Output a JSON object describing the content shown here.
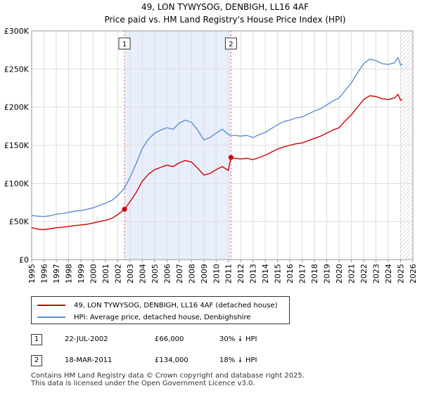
{
  "chart_data": {
    "type": "line",
    "title": "49, LON TYWYSOG, DENBIGH, LL16 4AF",
    "subtitle": "Price paid vs. HM Land Registry's House Price Index (HPI)",
    "xlabel": "",
    "ylabel": "",
    "xlim": [
      1995,
      2026
    ],
    "ylim": [
      0,
      300000
    ],
    "yticks": [
      0,
      50000,
      100000,
      150000,
      200000,
      250000,
      300000
    ],
    "ytick_labels": [
      "£0",
      "£50K",
      "£100K",
      "£150K",
      "£200K",
      "£250K",
      "£300K"
    ],
    "xticks": [
      "1995",
      "1996",
      "1997",
      "1998",
      "1999",
      "2000",
      "2001",
      "2002",
      "2003",
      "2004",
      "2005",
      "2006",
      "2007",
      "2008",
      "2009",
      "2010",
      "2011",
      "2012",
      "2013",
      "2014",
      "2015",
      "2016",
      "2017",
      "2018",
      "2019",
      "2020",
      "2021",
      "2022",
      "2023",
      "2024",
      "2025",
      "2026"
    ],
    "grid": true,
    "shaded_range": [
      2002.55,
      2011.21
    ],
    "hatched_from": 2025.0,
    "series": [
      {
        "name": "49, LON TYWYSOG, DENBIGH, LL16 4AF (detached house)",
        "color": "#cc0000",
        "points": [
          [
            1995.0,
            42000
          ],
          [
            1995.5,
            40000
          ],
          [
            1996.0,
            39500
          ],
          [
            1996.5,
            40500
          ],
          [
            1997.0,
            42000
          ],
          [
            1997.5,
            42500
          ],
          [
            1998.0,
            43500
          ],
          [
            1998.5,
            44500
          ],
          [
            1999.0,
            45500
          ],
          [
            1999.5,
            46500
          ],
          [
            2000.0,
            48000
          ],
          [
            2000.5,
            50000
          ],
          [
            2001.0,
            51500
          ],
          [
            2001.5,
            54000
          ],
          [
            2002.0,
            59000
          ],
          [
            2002.55,
            66000
          ],
          [
            2003.0,
            76000
          ],
          [
            2003.5,
            88000
          ],
          [
            2004.0,
            103000
          ],
          [
            2004.5,
            112000
          ],
          [
            2005.0,
            118000
          ],
          [
            2005.5,
            121000
          ],
          [
            2006.0,
            124000
          ],
          [
            2006.5,
            122000
          ],
          [
            2007.0,
            127000
          ],
          [
            2007.5,
            130000
          ],
          [
            2008.0,
            128000
          ],
          [
            2008.5,
            120000
          ],
          [
            2009.0,
            111000
          ],
          [
            2009.5,
            113000
          ],
          [
            2010.0,
            118000
          ],
          [
            2010.5,
            122000
          ],
          [
            2011.0,
            117000
          ],
          [
            2011.21,
            134000
          ],
          [
            2011.5,
            133000
          ],
          [
            2012.0,
            132000
          ],
          [
            2012.5,
            133000
          ],
          [
            2013.0,
            131000
          ],
          [
            2013.5,
            134000
          ],
          [
            2014.0,
            137000
          ],
          [
            2014.5,
            141000
          ],
          [
            2015.0,
            145000
          ],
          [
            2015.5,
            148000
          ],
          [
            2016.0,
            150000
          ],
          [
            2016.5,
            152000
          ],
          [
            2017.0,
            153000
          ],
          [
            2017.5,
            156000
          ],
          [
            2018.0,
            159000
          ],
          [
            2018.5,
            162000
          ],
          [
            2019.0,
            166000
          ],
          [
            2019.5,
            170000
          ],
          [
            2020.0,
            173000
          ],
          [
            2020.5,
            182000
          ],
          [
            2021.0,
            190000
          ],
          [
            2021.5,
            200000
          ],
          [
            2022.0,
            210000
          ],
          [
            2022.5,
            215000
          ],
          [
            2023.0,
            214000
          ],
          [
            2023.5,
            211000
          ],
          [
            2024.0,
            210000
          ],
          [
            2024.5,
            212000
          ],
          [
            2024.8,
            217000
          ],
          [
            2025.0,
            209000
          ],
          [
            2025.15,
            210000
          ]
        ]
      },
      {
        "name": "HPI: Average price, detached house, Denbighshire",
        "color": "#5b8fd0",
        "points": [
          [
            1995.0,
            58000
          ],
          [
            1995.5,
            57000
          ],
          [
            1996.0,
            56500
          ],
          [
            1996.5,
            57500
          ],
          [
            1997.0,
            59500
          ],
          [
            1997.5,
            60500
          ],
          [
            1998.0,
            62000
          ],
          [
            1998.5,
            63500
          ],
          [
            1999.0,
            64500
          ],
          [
            1999.5,
            66000
          ],
          [
            2000.0,
            68000
          ],
          [
            2000.5,
            71000
          ],
          [
            2001.0,
            74000
          ],
          [
            2001.5,
            77500
          ],
          [
            2002.0,
            84000
          ],
          [
            2002.55,
            94000
          ],
          [
            2003.0,
            108000
          ],
          [
            2003.5,
            126000
          ],
          [
            2004.0,
            146000
          ],
          [
            2004.5,
            158000
          ],
          [
            2005.0,
            166000
          ],
          [
            2005.5,
            170000
          ],
          [
            2006.0,
            173000
          ],
          [
            2006.5,
            171000
          ],
          [
            2007.0,
            179000
          ],
          [
            2007.5,
            183000
          ],
          [
            2008.0,
            180000
          ],
          [
            2008.5,
            170000
          ],
          [
            2009.0,
            157000
          ],
          [
            2009.5,
            160000
          ],
          [
            2010.0,
            166000
          ],
          [
            2010.5,
            171000
          ],
          [
            2011.0,
            164000
          ],
          [
            2011.21,
            163000
          ],
          [
            2011.5,
            163000
          ],
          [
            2012.0,
            162000
          ],
          [
            2012.5,
            163000
          ],
          [
            2013.0,
            160000
          ],
          [
            2013.5,
            164000
          ],
          [
            2014.0,
            167000
          ],
          [
            2014.5,
            172000
          ],
          [
            2015.0,
            177000
          ],
          [
            2015.5,
            181000
          ],
          [
            2016.0,
            183000
          ],
          [
            2016.5,
            186000
          ],
          [
            2017.0,
            187000
          ],
          [
            2017.5,
            191000
          ],
          [
            2018.0,
            195000
          ],
          [
            2018.5,
            198000
          ],
          [
            2019.0,
            203000
          ],
          [
            2019.5,
            208000
          ],
          [
            2020.0,
            212000
          ],
          [
            2020.5,
            222000
          ],
          [
            2021.0,
            232000
          ],
          [
            2021.5,
            245000
          ],
          [
            2022.0,
            257000
          ],
          [
            2022.5,
            263000
          ],
          [
            2023.0,
            261000
          ],
          [
            2023.5,
            257000
          ],
          [
            2024.0,
            256000
          ],
          [
            2024.5,
            258000
          ],
          [
            2024.8,
            265000
          ],
          [
            2025.0,
            255000
          ],
          [
            2025.15,
            256000
          ]
        ]
      }
    ],
    "annotations": [
      {
        "label": "1",
        "x": 2002.55,
        "y": 66000
      },
      {
        "label": "2",
        "x": 2011.21,
        "y": 134000
      }
    ]
  },
  "legend": {
    "property_label": "49, LON TYWYSOG, DENBIGH, LL16 4AF (detached house)",
    "hpi_label": "HPI: Average price, detached house, Denbighshire"
  },
  "sales": [
    {
      "num": "1",
      "date": "22-JUL-2002",
      "price": "£66,000",
      "hpi": "30% ↓ HPI"
    },
    {
      "num": "2",
      "date": "18-MAR-2011",
      "price": "£134,000",
      "hpi": "18% ↓ HPI"
    }
  ],
  "footer": {
    "line1": "Contains HM Land Registry data © Crown copyright and database right 2025.",
    "line2": "This data is licensed under the Open Government Licence v3.0."
  },
  "colors": {
    "property": "#cc0000",
    "hpi": "#5b8fd0",
    "shade": "#e8eefb",
    "grid": "#dddddd"
  }
}
